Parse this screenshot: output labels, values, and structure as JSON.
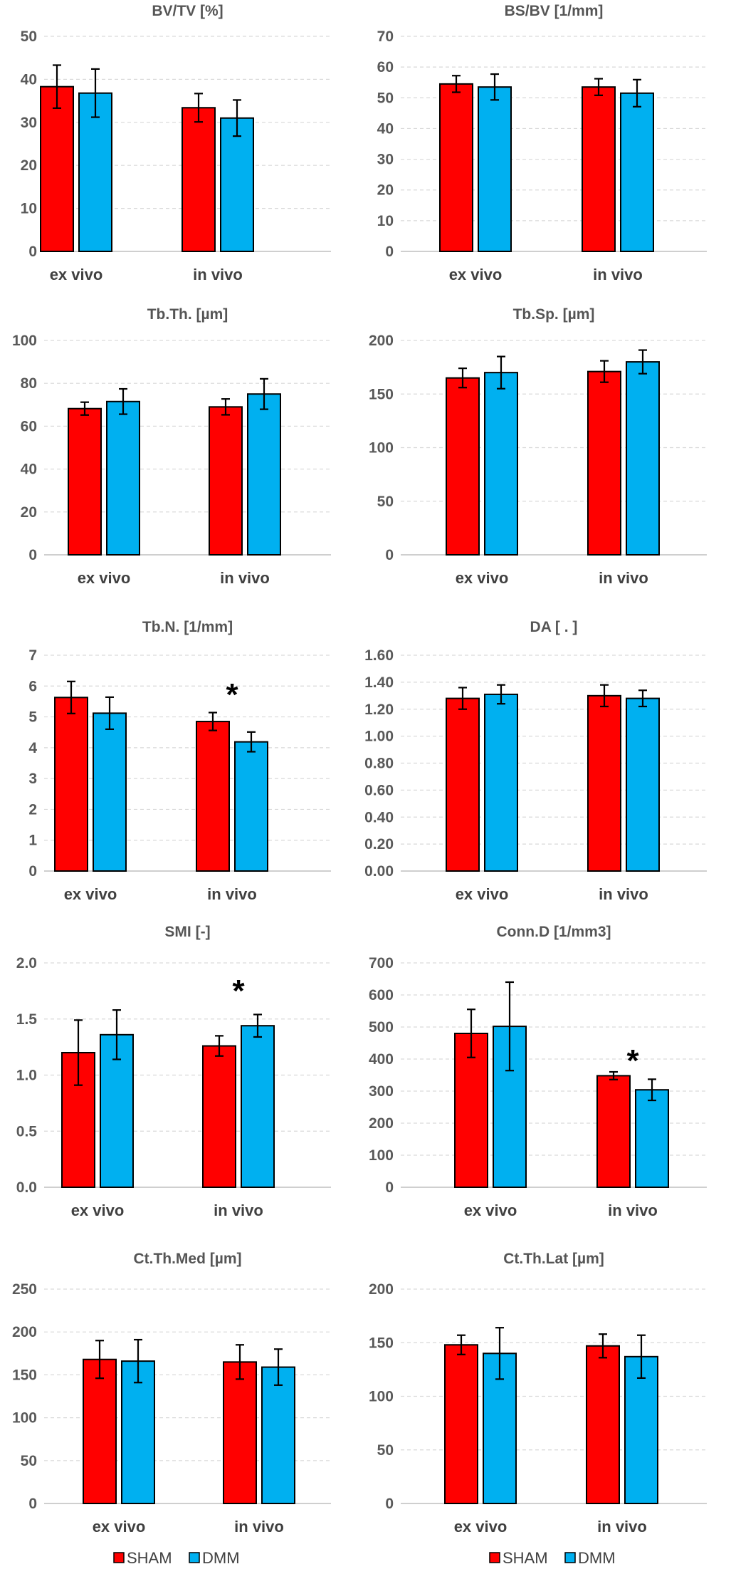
{
  "colors": {
    "sham": "#ff0000",
    "dmm": "#00b0f0",
    "grid": "#d9d9d9",
    "axis": "#bfbfbf"
  },
  "legend": [
    {
      "label": "SHAM",
      "color": "#ff0000"
    },
    {
      "label": "DMM",
      "color": "#00b0f0"
    }
  ],
  "chart_data": [
    {
      "type": "bar",
      "title": "BV/TV [%]",
      "categories": [
        "ex vivo",
        "in vivo"
      ],
      "series": [
        {
          "name": "SHAM",
          "values": [
            38.3,
            33.4
          ],
          "errors": [
            5.0,
            3.3
          ]
        },
        {
          "name": "DMM",
          "values": [
            36.8,
            31.0
          ],
          "errors": [
            5.6,
            4.2
          ]
        }
      ],
      "ylim": [
        0,
        50
      ],
      "yticks": [
        "0",
        "10",
        "20",
        "30",
        "40",
        "50"
      ],
      "grid": true,
      "star": null
    },
    {
      "type": "bar",
      "title": "BS/BV [1/mm]",
      "categories": [
        "ex vivo",
        "in vivo"
      ],
      "series": [
        {
          "name": "SHAM",
          "values": [
            54.5,
            53.5
          ],
          "errors": [
            2.7,
            2.7
          ]
        },
        {
          "name": "DMM",
          "values": [
            53.5,
            51.5
          ],
          "errors": [
            4.2,
            4.4
          ]
        }
      ],
      "ylim": [
        0,
        70
      ],
      "yticks": [
        "0",
        "10",
        "20",
        "30",
        "40",
        "50",
        "60",
        "70"
      ],
      "grid": true,
      "star": null
    },
    {
      "type": "bar",
      "title": "Tb.Th. [µm]",
      "categories": [
        "ex vivo",
        "in vivo"
      ],
      "series": [
        {
          "name": "SHAM",
          "values": [
            68.2,
            69.0
          ],
          "errors": [
            3.0,
            3.7
          ]
        },
        {
          "name": "DMM",
          "values": [
            71.5,
            75.0
          ],
          "errors": [
            5.9,
            7.1
          ]
        }
      ],
      "ylim": [
        0,
        100
      ],
      "yticks": [
        "0",
        "20",
        "40",
        "60",
        "80",
        "100"
      ],
      "grid": true,
      "star": null
    },
    {
      "type": "bar",
      "title": "Tb.Sp. [µm]",
      "categories": [
        "ex vivo",
        "in vivo"
      ],
      "series": [
        {
          "name": "SHAM",
          "values": [
            165,
            171
          ],
          "errors": [
            9,
            10
          ]
        },
        {
          "name": "DMM",
          "values": [
            170,
            180
          ],
          "errors": [
            15,
            11
          ]
        }
      ],
      "ylim": [
        0,
        200
      ],
      "yticks": [
        "0",
        "50",
        "100",
        "150",
        "200"
      ],
      "grid": true,
      "star": null
    },
    {
      "type": "bar",
      "title": "Tb.N. [1/mm]",
      "categories": [
        "ex vivo",
        "in vivo"
      ],
      "series": [
        {
          "name": "SHAM",
          "values": [
            5.63,
            4.85
          ],
          "errors": [
            0.52,
            0.29
          ]
        },
        {
          "name": "DMM",
          "values": [
            5.12,
            4.19
          ],
          "errors": [
            0.52,
            0.32
          ]
        }
      ],
      "ylim": [
        0,
        7
      ],
      "yticks": [
        "0",
        "1",
        "2",
        "3",
        "4",
        "5",
        "6",
        "7"
      ],
      "grid": true,
      "star": {
        "label": "*",
        "category": 1,
        "value": 5.75
      }
    },
    {
      "type": "bar",
      "title": "DA [ . ]",
      "categories": [
        "ex vivo",
        "in vivo"
      ],
      "series": [
        {
          "name": "SHAM",
          "values": [
            1.28,
            1.3
          ],
          "errors": [
            0.08,
            0.08
          ]
        },
        {
          "name": "DMM",
          "values": [
            1.31,
            1.28
          ],
          "errors": [
            0.07,
            0.06
          ]
        }
      ],
      "ylim": [
        0,
        1.6
      ],
      "yticks": [
        "0.00",
        "0.20",
        "0.40",
        "0.60",
        "0.80",
        "1.00",
        "1.20",
        "1.40",
        "1.60"
      ],
      "grid": true,
      "star": null
    },
    {
      "type": "bar",
      "title": "SMI [-]",
      "categories": [
        "ex vivo",
        "in vivo"
      ],
      "series": [
        {
          "name": "SHAM",
          "values": [
            1.2,
            1.26
          ],
          "errors": [
            0.29,
            0.09
          ]
        },
        {
          "name": "DMM",
          "values": [
            1.36,
            1.44
          ],
          "errors": [
            0.22,
            0.1
          ]
        }
      ],
      "ylim": [
        0,
        2.0
      ],
      "yticks": [
        "0.0",
        "0.5",
        "1.0",
        "1.5",
        "2.0"
      ],
      "grid": true,
      "star": {
        "label": "*",
        "category": 1,
        "value": 1.76
      }
    },
    {
      "type": "bar",
      "title": "Conn.D [1/mm3]",
      "categories": [
        "ex vivo",
        "in vivo"
      ],
      "series": [
        {
          "name": "SHAM",
          "values": [
            480,
            348
          ],
          "errors": [
            75,
            12
          ]
        },
        {
          "name": "DMM",
          "values": [
            502,
            304
          ],
          "errors": [
            138,
            33
          ]
        }
      ],
      "ylim": [
        0,
        700
      ],
      "yticks": [
        "0",
        "100",
        "200",
        "300",
        "400",
        "500",
        "600",
        "700"
      ],
      "grid": true,
      "star": {
        "label": "*",
        "category": 1,
        "value": 398
      }
    },
    {
      "type": "bar",
      "title": "Ct.Th.Med [µm]",
      "categories": [
        "ex vivo",
        "in vivo"
      ],
      "series": [
        {
          "name": "SHAM",
          "values": [
            168,
            165
          ],
          "errors": [
            22,
            20
          ]
        },
        {
          "name": "DMM",
          "values": [
            166,
            159
          ],
          "errors": [
            25,
            21
          ]
        }
      ],
      "ylim": [
        0,
        250
      ],
      "yticks": [
        "0",
        "50",
        "100",
        "150",
        "200",
        "250"
      ],
      "grid": true,
      "star": null
    },
    {
      "type": "bar",
      "title": "Ct.Th.Lat [µm]",
      "categories": [
        "ex vivo",
        "in vivo"
      ],
      "series": [
        {
          "name": "SHAM",
          "values": [
            148,
            147
          ],
          "errors": [
            9,
            11
          ]
        },
        {
          "name": "DMM",
          "values": [
            140,
            137
          ],
          "errors": [
            24,
            20
          ]
        }
      ],
      "ylim": [
        0,
        200
      ],
      "yticks": [
        "0",
        "50",
        "100",
        "150",
        "200"
      ],
      "grid": true,
      "star": null
    }
  ]
}
